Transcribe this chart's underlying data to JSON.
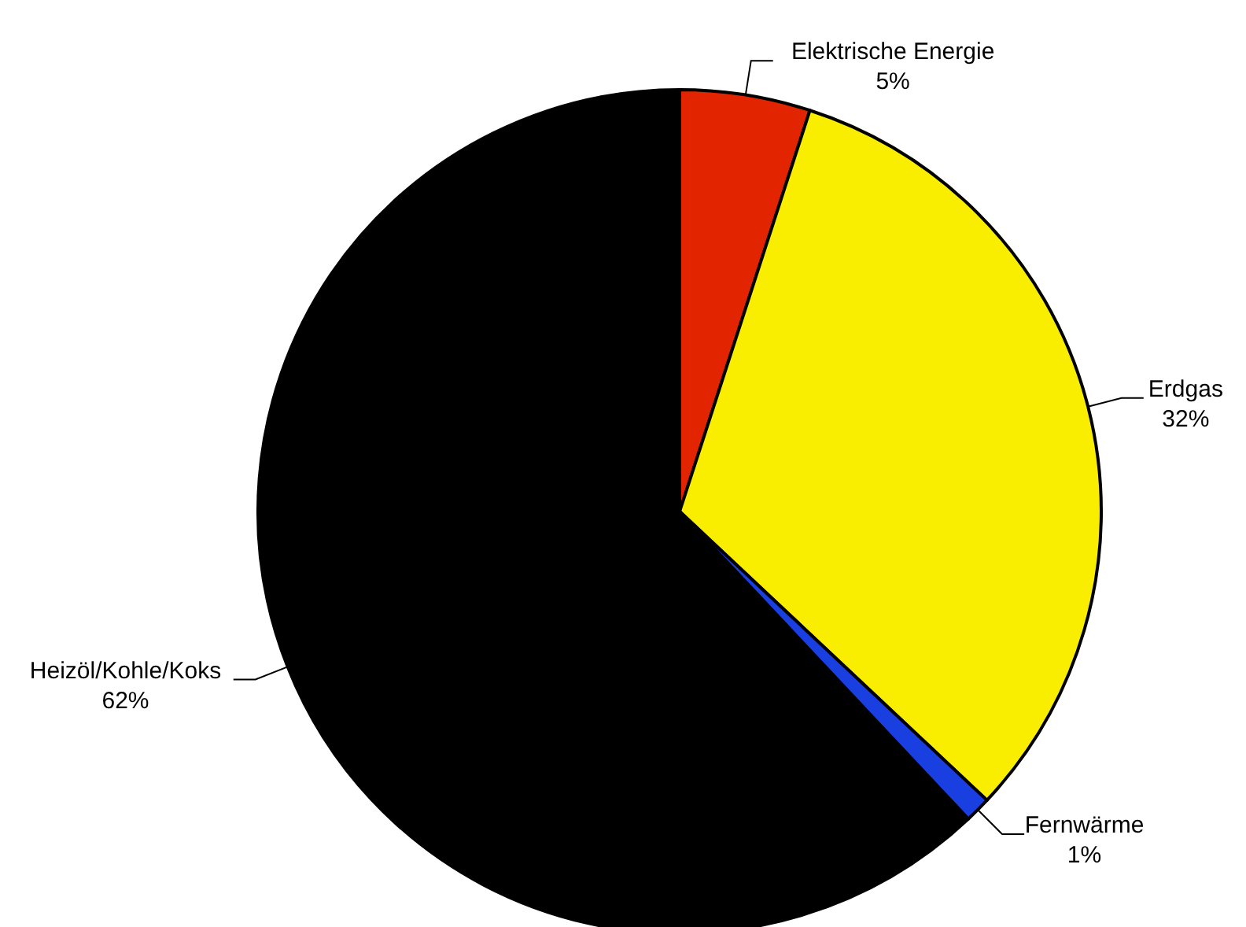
{
  "chart_data": {
    "type": "pie",
    "categories": [
      "Elektrische Energie",
      "Erdgas",
      "Fernwärme",
      "Heizöl/Kohle/Koks"
    ],
    "values": [
      5,
      32,
      1,
      62
    ],
    "colors": [
      "#e32400",
      "#f9ee00",
      "#1a3fe0",
      "#000000"
    ],
    "value_labels": [
      "5%",
      "32%",
      "1%",
      "62%"
    ],
    "legend": false
  }
}
